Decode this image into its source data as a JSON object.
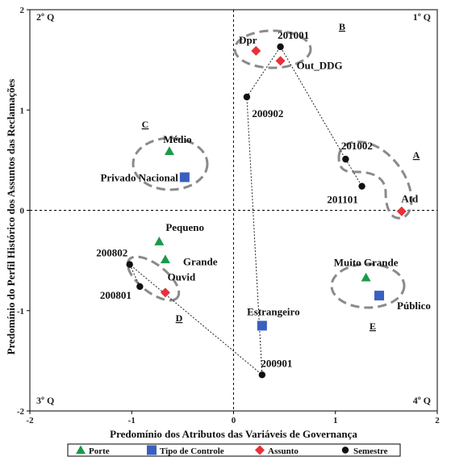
{
  "chart_data": {
    "type": "scatter",
    "xlabel": "Predomínio dos Atributos das Variáveis de Governança",
    "ylabel": "Predomínio do Perfil Histórico dos Assuntos das Reclamações",
    "xlim": [
      -2,
      2
    ],
    "ylim": [
      -2,
      2
    ],
    "xticks": [
      "-2",
      "-1",
      "0",
      "1",
      "2"
    ],
    "yticks": [
      "2",
      "1",
      "0",
      "-1",
      "-2"
    ],
    "grid": false,
    "legend_position": "bottom",
    "quadrants": [
      "2º Q",
      "1º Q",
      "3º Q",
      "4º Q"
    ],
    "series": [
      {
        "name": "Porte",
        "marker": "triangle",
        "color": "#1a9a4a",
        "points": [
          {
            "label": "Médio",
            "x": -0.63,
            "y": 0.59
          },
          {
            "label": "Pequeno",
            "x": -0.73,
            "y": -0.31
          },
          {
            "label": "Grande",
            "x": -0.67,
            "y": -0.49
          },
          {
            "label": "Muito Grande",
            "x": 1.3,
            "y": -0.67
          }
        ]
      },
      {
        "name": "Tipo de Controle",
        "marker": "square",
        "color": "#3a5fc0",
        "points": [
          {
            "label": "Privado Nacional",
            "x": -0.48,
            "y": 0.33
          },
          {
            "label": "Público",
            "x": 1.43,
            "y": -0.85
          },
          {
            "label": "Estrangeiro",
            "x": 0.28,
            "y": -1.15
          }
        ]
      },
      {
        "name": "Assunto",
        "marker": "diamond",
        "color": "#e8303a",
        "points": [
          {
            "label": "Dpr",
            "x": 0.22,
            "y": 1.59
          },
          {
            "label": "Out_DDG",
            "x": 0.46,
            "y": 1.49
          },
          {
            "label": "Atd",
            "x": 1.65,
            "y": -0.01
          },
          {
            "label": "Ouvid",
            "x": -0.67,
            "y": -0.82
          }
        ]
      },
      {
        "name": "Semestre",
        "marker": "circle",
        "color": "#111111",
        "points": [
          {
            "label": "201001",
            "x": 0.46,
            "y": 1.63
          },
          {
            "label": "200902",
            "x": 0.13,
            "y": 1.13
          },
          {
            "label": "201002",
            "x": 1.1,
            "y": 0.51
          },
          {
            "label": "201101",
            "x": 1.26,
            "y": 0.24
          },
          {
            "label": "200802",
            "x": -1.02,
            "y": -0.54
          },
          {
            "label": "200801",
            "x": -0.92,
            "y": -0.76
          },
          {
            "label": "200901",
            "x": 0.28,
            "y": -1.64
          }
        ]
      }
    ],
    "trajectory": [
      "200801",
      "200802",
      "200901",
      "200902",
      "201001",
      "201002",
      "201101"
    ],
    "groups": [
      "A",
      "B",
      "C",
      "D",
      "E"
    ]
  }
}
